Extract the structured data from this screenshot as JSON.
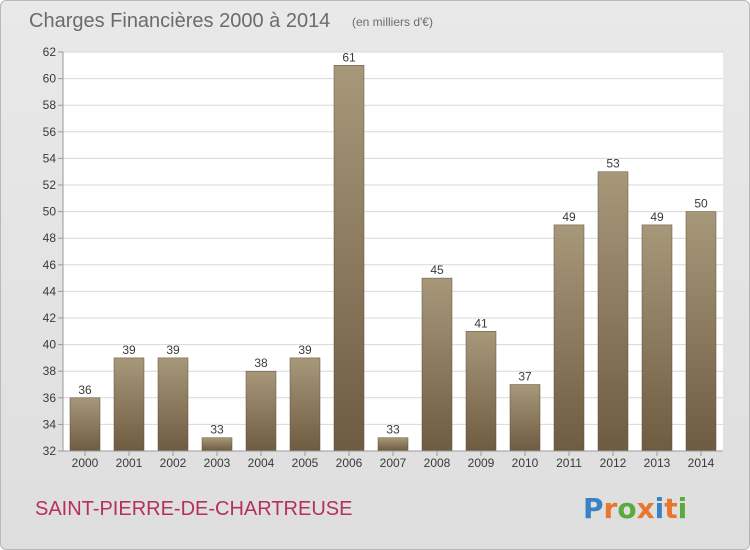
{
  "header": {
    "title": "Charges Financières 2000 à 2014",
    "subtitle": "(en milliers d'€)"
  },
  "footer": {
    "commune": "SAINT-PIERRE-DE-CHARTREUSE",
    "logo_text": "Proxiti",
    "logo_colors": [
      "#3b82c4",
      "#e8762c",
      "#5aaa3c",
      "#e8762c",
      "#3b82c4",
      "#e8762c",
      "#5aaa3c"
    ]
  },
  "colors": {
    "bar_top": "#a8987a",
    "bar_bottom": "#6e5c42",
    "grid": "#d8d8d8",
    "plot_bg": "#ffffff"
  },
  "chart_data": {
    "type": "bar",
    "categories": [
      "2000",
      "2001",
      "2002",
      "2003",
      "2004",
      "2005",
      "2006",
      "2007",
      "2008",
      "2009",
      "2010",
      "2011",
      "2012",
      "2013",
      "2014"
    ],
    "values": [
      36,
      39,
      39,
      33,
      38,
      39,
      61,
      33,
      45,
      41,
      37,
      49,
      53,
      49,
      50
    ],
    "ylim": [
      32,
      62
    ],
    "yticks": [
      32,
      34,
      36,
      38,
      40,
      42,
      44,
      46,
      48,
      50,
      52,
      54,
      56,
      58,
      60,
      62
    ],
    "grid": true,
    "xlabel": "",
    "ylabel": ""
  }
}
